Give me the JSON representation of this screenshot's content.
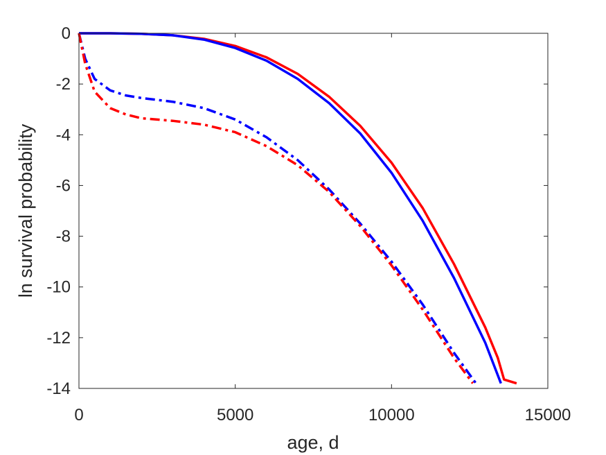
{
  "chart_data": {
    "type": "line",
    "title": "",
    "xlabel": "age, d",
    "ylabel": "ln survival probability",
    "xlim": [
      0,
      15000
    ],
    "ylim": [
      -14,
      0
    ],
    "xticks": [
      0,
      5000,
      10000,
      15000
    ],
    "xtick_labels": [
      "0",
      "5000",
      "10000",
      "15000"
    ],
    "yticks": [
      -14,
      -12,
      -10,
      -8,
      -6,
      -4,
      -2,
      0
    ],
    "ytick_labels": [
      "-14",
      "-12",
      "-10",
      "-8",
      "-6",
      "-4",
      "-2",
      "0"
    ],
    "grid": false,
    "legend": "none",
    "series": [
      {
        "color": "#ff0000",
        "style": "solid",
        "x": [
          0,
          1000,
          2000,
          3000,
          4000,
          5000,
          6000,
          7000,
          8000,
          9000,
          10000,
          11000,
          12000,
          13000,
          13400,
          13600,
          14000
        ],
        "y": [
          0,
          0,
          -0.02,
          -0.08,
          -0.22,
          -0.5,
          -0.95,
          -1.6,
          -2.5,
          -3.65,
          -5.1,
          -6.9,
          -9.1,
          -11.6,
          -12.8,
          -13.65,
          -13.8
        ]
      },
      {
        "color": "#0000ff",
        "style": "solid",
        "x": [
          0,
          1000,
          2000,
          3000,
          4000,
          5000,
          6000,
          7000,
          8000,
          9000,
          10000,
          11000,
          12000,
          13000,
          13500
        ],
        "y": [
          0,
          0,
          -0.02,
          -0.08,
          -0.25,
          -0.58,
          -1.08,
          -1.8,
          -2.75,
          -3.95,
          -5.5,
          -7.4,
          -9.65,
          -12.2,
          -13.8
        ]
      },
      {
        "color": "#0000ff",
        "style": "dashdot",
        "x": [
          0,
          200,
          500,
          1000,
          1500,
          2000,
          3000,
          4000,
          5000,
          6000,
          7000,
          8000,
          9000,
          10000,
          11000,
          12000,
          12700
        ],
        "y": [
          0,
          -1.0,
          -1.8,
          -2.25,
          -2.45,
          -2.55,
          -2.7,
          -2.95,
          -3.4,
          -4.1,
          -5.0,
          -6.15,
          -7.5,
          -9.0,
          -10.7,
          -12.6,
          -13.8
        ]
      },
      {
        "color": "#ff0000",
        "style": "dashdot",
        "x": [
          0,
          200,
          500,
          1000,
          1500,
          2000,
          3000,
          4000,
          5000,
          6000,
          7000,
          8000,
          9000,
          10000,
          11000,
          12000,
          12600
        ],
        "y": [
          0,
          -1.2,
          -2.3,
          -2.95,
          -3.2,
          -3.35,
          -3.45,
          -3.6,
          -3.9,
          -4.45,
          -5.2,
          -6.25,
          -7.6,
          -9.15,
          -10.9,
          -12.8,
          -13.8
        ]
      }
    ]
  }
}
